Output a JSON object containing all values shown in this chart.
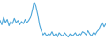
{
  "values": [
    62,
    58,
    65,
    60,
    63,
    57,
    61,
    59,
    64,
    60,
    62,
    58,
    61,
    59,
    63,
    60,
    62,
    65,
    72,
    80,
    76,
    68,
    58,
    52,
    48,
    50,
    47,
    49,
    48,
    51,
    47,
    49,
    46,
    50,
    48,
    47,
    50,
    48,
    46,
    49,
    47,
    48,
    50,
    47,
    49,
    48,
    51,
    50,
    48,
    52,
    49,
    47,
    50,
    48,
    51,
    53,
    57,
    60,
    56,
    59
  ],
  "line_color": "#4da6d9",
  "bg_color": "#ffffff",
  "linewidth": 0.8
}
